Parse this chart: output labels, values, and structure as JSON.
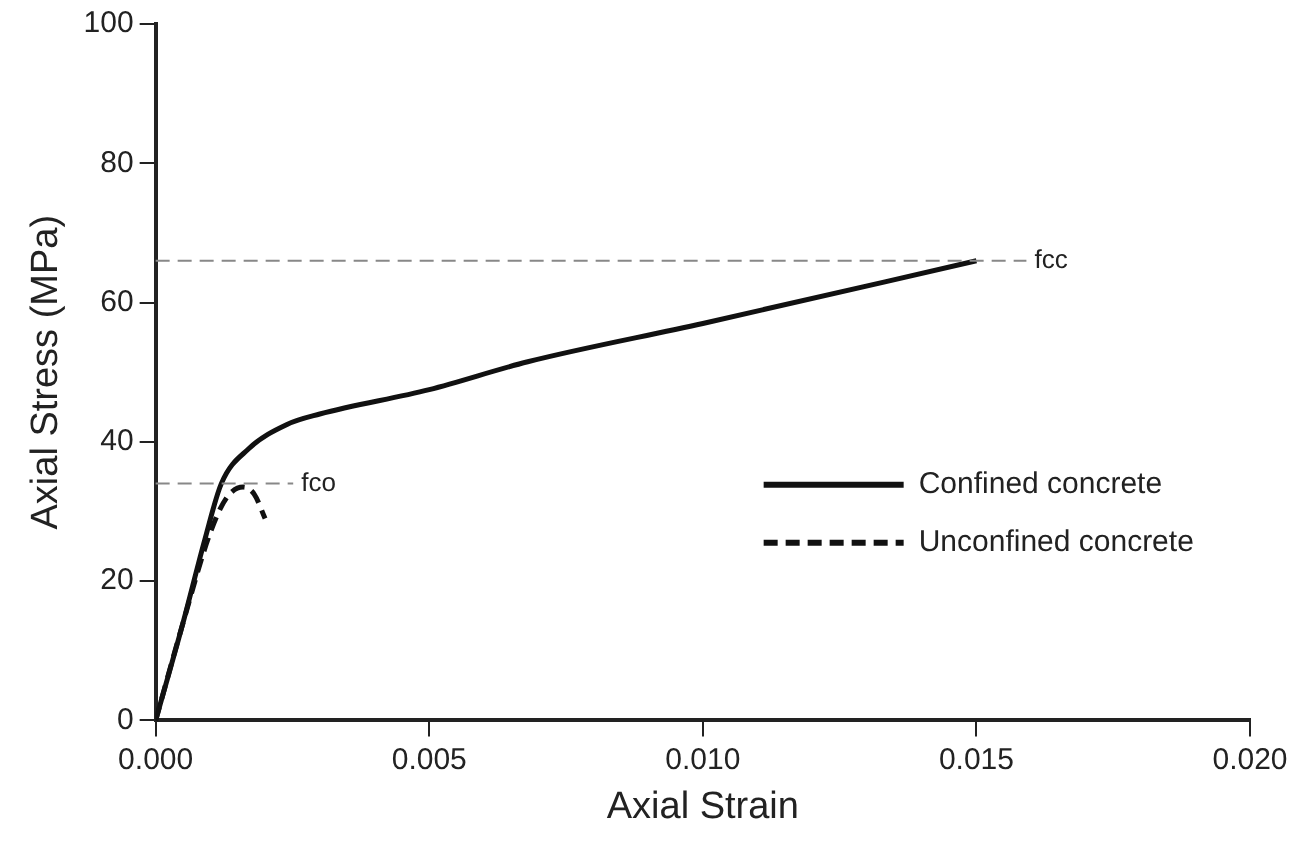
{
  "chart_data": {
    "type": "line",
    "xlabel": "Axial Strain",
    "ylabel": "Axial Stress (MPa)",
    "xlim": [
      0,
      0.02
    ],
    "xticks": [
      {
        "value": 0,
        "label": "0.000"
      },
      {
        "value": 0.005,
        "label": "0.005"
      },
      {
        "value": 0.01,
        "label": "0.010"
      },
      {
        "value": 0.015,
        "label": "0.015"
      },
      {
        "value": 0.02,
        "label": "0.020"
      }
    ],
    "ylim": [
      0,
      100
    ],
    "yticks": [
      0,
      20,
      40,
      60,
      80,
      100
    ],
    "series": [
      {
        "name": "Confined concrete",
        "color": "#111111",
        "line_style": "solid",
        "x": [
          0,
          0.0005,
          0.0009,
          0.0012,
          0.0017,
          0.0024,
          0.003,
          0.005,
          0.0068,
          0.01,
          0.015
        ],
        "values": [
          0,
          14,
          26,
          34,
          39,
          42.5,
          44,
          47.5,
          51.5,
          57,
          66
        ]
      },
      {
        "name": "Unconfined concrete",
        "color": "#111111",
        "line_style": "dashed",
        "x": [
          0,
          0.0005,
          0.001,
          0.0013,
          0.0016,
          0.0018,
          0.002
        ],
        "values": [
          0,
          14,
          27,
          32,
          33.5,
          32.5,
          29
        ]
      }
    ],
    "ref_lines": [
      {
        "axis": "y",
        "value": 66,
        "label": "fcc",
        "color": "#888888",
        "line_style": "dashed"
      },
      {
        "axis": "y",
        "value": 34,
        "label": "fco",
        "color": "#888888",
        "line_style": "dashed"
      }
    ],
    "legend": "right",
    "grid": false,
    "marker": "none"
  }
}
